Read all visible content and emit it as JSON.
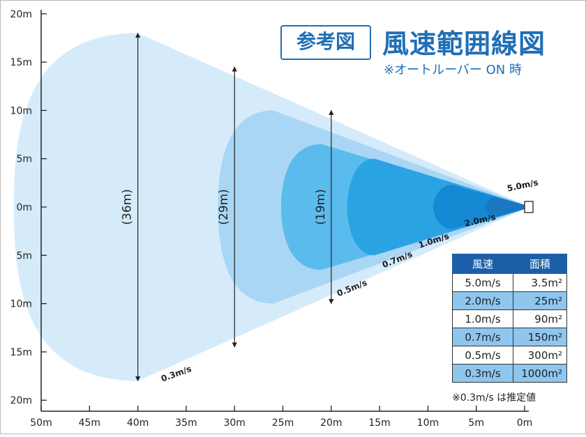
{
  "title": {
    "box_label": "参考図",
    "main": "風速範囲線図",
    "subtitle": "※オートルーバー ON 時"
  },
  "axes": {
    "x_ticks": [
      "50m",
      "45m",
      "40m",
      "35m",
      "30m",
      "25m",
      "20m",
      "15m",
      "10m",
      "5m",
      "0m"
    ],
    "y_ticks": [
      "20m",
      "15m",
      "10m",
      "5m",
      "0m",
      "5m",
      "10m",
      "15m",
      "20m"
    ]
  },
  "zones": [
    {
      "speed": "0.3m/s",
      "reach_m": 40,
      "half_width_m": 18,
      "color": "#d6ebfa"
    },
    {
      "speed": "0.5m/s",
      "reach_m": 26,
      "half_width_m": 10,
      "color": "#a9d6f4"
    },
    {
      "speed": "0.7m/s",
      "reach_m": 21,
      "half_width_m": 6.5,
      "color": "#5bbbed"
    },
    {
      "speed": "1.0m/s",
      "reach_m": 15.5,
      "half_width_m": 5,
      "color": "#2aa3e3"
    },
    {
      "speed": "2.0m/s",
      "reach_m": 7.5,
      "half_width_m": 2.3,
      "color": "#1589d4"
    },
    {
      "speed": "5.0m/s",
      "reach_m": 3,
      "half_width_m": 1,
      "color": "#1a78c2"
    }
  ],
  "widths": [
    "(36m)",
    "(29m)",
    "(19m)"
  ],
  "table": {
    "headers": [
      "風速",
      "面積"
    ],
    "rows": [
      [
        "5.0m/s",
        "3.5m²"
      ],
      [
        "2.0m/s",
        "25m²"
      ],
      [
        "1.0m/s",
        "90m²"
      ],
      [
        "0.7m/s",
        "150m²"
      ],
      [
        "0.5m/s",
        "300m²"
      ],
      [
        "0.3m/s",
        "1000m²"
      ]
    ],
    "note": "※0.3m/s は推定値"
  }
}
